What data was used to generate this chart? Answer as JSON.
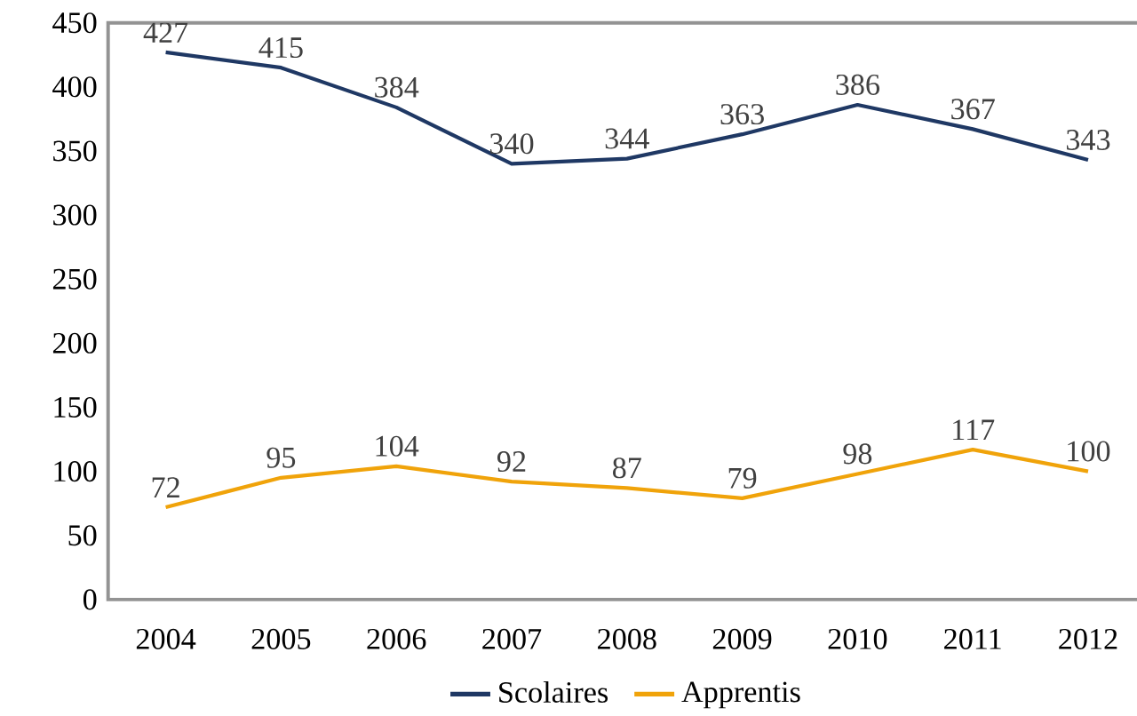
{
  "chart_data": {
    "type": "line",
    "categories": [
      "2004",
      "2005",
      "2006",
      "2007",
      "2008",
      "2009",
      "2010",
      "2011",
      "2012"
    ],
    "series": [
      {
        "name": "Scolaires",
        "color": "#1f3864",
        "values": [
          427,
          415,
          384,
          340,
          344,
          363,
          386,
          367,
          343
        ]
      },
      {
        "name": "Apprentis",
        "color": "#f0a30a",
        "values": [
          72,
          95,
          104,
          92,
          87,
          79,
          98,
          117,
          100
        ]
      }
    ],
    "ylim": [
      0,
      450
    ],
    "yticks": [
      0,
      50,
      100,
      150,
      200,
      250,
      300,
      350,
      400,
      450
    ],
    "data_labels": true,
    "legend": "bottom",
    "grid": false,
    "marker": "none",
    "line_style": "solid"
  }
}
